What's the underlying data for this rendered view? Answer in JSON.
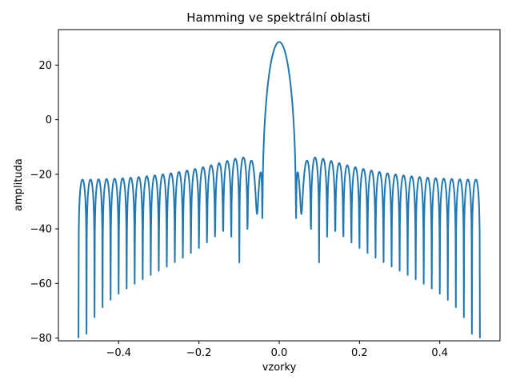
{
  "chart_data": {
    "type": "line",
    "title": "Hamming ve spektrální oblasti",
    "xlabel": "vzorky",
    "ylabel": "amplituda",
    "xlim": [
      -0.55,
      0.55
    ],
    "ylim": [
      -81,
      33
    ],
    "grid": false,
    "x_ticks": [
      -0.4,
      -0.2,
      0.0,
      0.2,
      0.4
    ],
    "x_tick_labels": [
      "−0.4",
      "−0.2",
      "0.0",
      "0.2",
      "0.4"
    ],
    "y_ticks": [
      20,
      0,
      -20,
      -40,
      -60,
      -80
    ],
    "y_tick_labels": [
      "20",
      "0",
      "−20",
      "−40",
      "−60",
      "−80"
    ],
    "series": [
      {
        "color": "#1f77b4",
        "function": "hamming-window spectrum, window length 50, magnitude in dB",
        "window_length": 50,
        "x_range": [
          -0.5,
          0.5
        ],
        "peak_db": 28.5,
        "sidelobe_db": -22
      }
    ]
  }
}
